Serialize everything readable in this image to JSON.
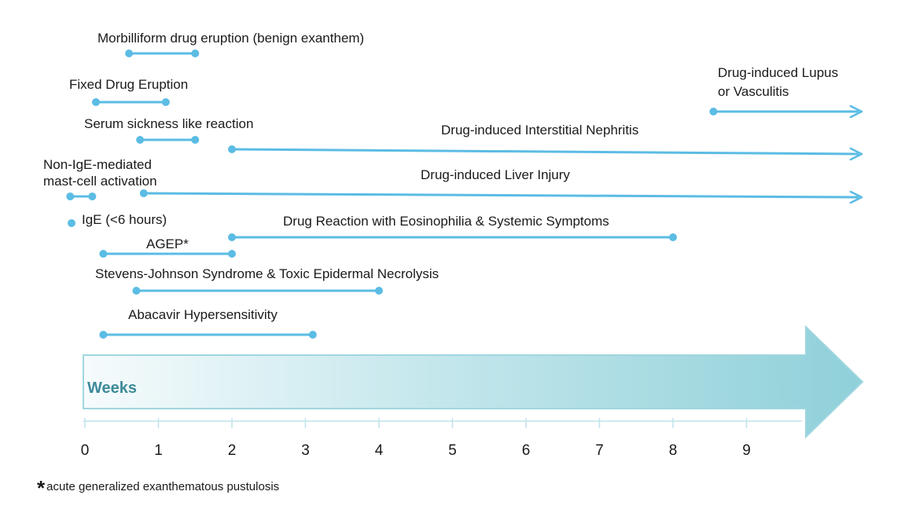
{
  "axis": {
    "title": "Weeks",
    "ticks": [
      "0",
      "1",
      "2",
      "3",
      "4",
      "5",
      "6",
      "7",
      "8",
      "9"
    ]
  },
  "colors": {
    "line": "#5bbce4",
    "arrow_start": "#f6fbfc",
    "arrow_end": "#8fd0d9",
    "arrow_stroke": "#9fd6df"
  },
  "bars": [
    {
      "id": "morbilliform",
      "label_lines": [
        "Morbilliform drug eruption (benign exanthem)"
      ],
      "start": 0.6,
      "end": 1.5,
      "arrow": false
    },
    {
      "id": "fixed",
      "label_lines": [
        "Fixed Drug Eruption"
      ],
      "start": 0.15,
      "end": 1.1,
      "arrow": false
    },
    {
      "id": "serum",
      "label_lines": [
        "Serum sickness like reaction"
      ],
      "start": 0.75,
      "end": 1.5,
      "arrow": false
    },
    {
      "id": "non-ige",
      "label_lines": [
        "Non-IgE-mediated",
        "mast-cell activation"
      ],
      "start": -0.2,
      "end": 0.1,
      "arrow": false
    },
    {
      "id": "ige",
      "label_lines": [
        "IgE (<6 hours)"
      ],
      "start": -0.15,
      "end": null,
      "arrow": false
    },
    {
      "id": "agep",
      "label_lines": [
        "AGEP*"
      ],
      "start": 0.25,
      "end": 2.0,
      "arrow": false
    },
    {
      "id": "sjs",
      "label_lines": [
        "Stevens-Johnson Syndrome & Toxic Epidermal Necrolysis"
      ],
      "start": 0.7,
      "end": 4.0,
      "arrow": false
    },
    {
      "id": "abacavir",
      "label_lines": [
        "Abacavir Hypersensitivity"
      ],
      "start": 0.25,
      "end": 3.1,
      "arrow": false
    },
    {
      "id": "dress",
      "label_lines": [
        "Drug Reaction with Eosinophilia & Systemic Symptoms"
      ],
      "start": 2.0,
      "end": 8.0,
      "arrow": false
    },
    {
      "id": "interstitial",
      "label_lines": [
        "Drug-induced Interstitial Nephritis"
      ],
      "start": 2.0,
      "end": null,
      "arrow": true
    },
    {
      "id": "liver",
      "label_lines": [
        "Drug-induced Liver Injury"
      ],
      "start": 0.8,
      "end": null,
      "arrow": true
    },
    {
      "id": "lupus",
      "label_lines": [
        "Drug-induced Lupus",
        "or Vasculitis"
      ],
      "start": 8.55,
      "end": null,
      "arrow": true
    }
  ],
  "footnote": {
    "marker": "*",
    "text": "acute generalized exanthematous pustulosis"
  }
}
